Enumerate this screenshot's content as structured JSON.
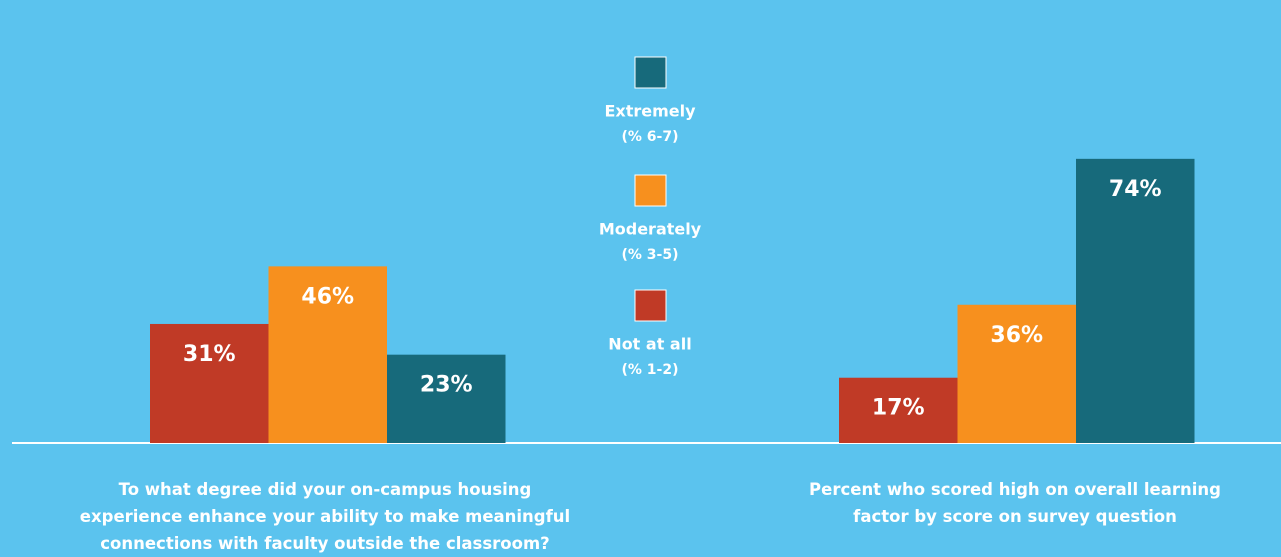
{
  "legend": [
    {
      "label": "Extremely",
      "note": "(% 6-7)",
      "color": "#176a7b"
    },
    {
      "label": "Moderately",
      "note": "(% 3-5)",
      "color": "#f7901e"
    },
    {
      "label": "Not at all",
      "note": "(% 1-2)",
      "color": "#c03a26"
    }
  ],
  "chart_data": [
    {
      "type": "bar",
      "values": [
        31,
        46,
        23
      ],
      "value_labels": [
        "31%",
        "46%",
        "23%"
      ],
      "colors": [
        "#c03a26",
        "#f7901e",
        "#176a7b"
      ],
      "ylim": [
        0,
        100
      ],
      "caption": "To what degree did your on-campus housing experience enhance your ability to make meaningful connections with faculty outside the classroom?"
    },
    {
      "type": "bar",
      "values": [
        17,
        36,
        74
      ],
      "value_labels": [
        "17%",
        "36%",
        "74%"
      ],
      "colors": [
        "#c03a26",
        "#f7901e",
        "#176a7b"
      ],
      "ylim": [
        0,
        100
      ],
      "caption": "Percent who scored high on overall learning factor by score on survey question"
    }
  ]
}
